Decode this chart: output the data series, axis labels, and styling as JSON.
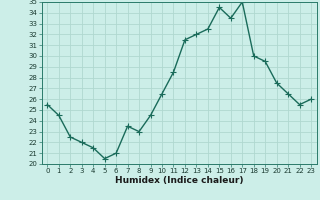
{
  "xlabel": "Humidex (Indice chaleur)",
  "ylabel": "",
  "x_values": [
    0,
    1,
    2,
    3,
    4,
    5,
    6,
    7,
    8,
    9,
    10,
    11,
    12,
    13,
    14,
    15,
    16,
    17,
    18,
    19,
    20,
    21,
    22,
    23
  ],
  "y_values": [
    25.5,
    24.5,
    22.5,
    22.0,
    21.5,
    20.5,
    21.0,
    23.5,
    23.0,
    24.5,
    26.5,
    28.5,
    31.5,
    32.0,
    32.5,
    34.5,
    33.5,
    35.0,
    30.0,
    29.5,
    27.5,
    26.5,
    25.5,
    26.0
  ],
  "line_color": "#1a6b5a",
  "marker_color": "#1a6b5a",
  "bg_color": "#cceee8",
  "grid_color": "#b0d8d0",
  "ylim": [
    20,
    35
  ],
  "xlim": [
    -0.5,
    23.5
  ],
  "yticks": [
    20,
    21,
    22,
    23,
    24,
    25,
    26,
    27,
    28,
    29,
    30,
    31,
    32,
    33,
    34,
    35
  ],
  "xticks": [
    0,
    1,
    2,
    3,
    4,
    5,
    6,
    7,
    8,
    9,
    10,
    11,
    12,
    13,
    14,
    15,
    16,
    17,
    18,
    19,
    20,
    21,
    22,
    23
  ],
  "tick_fontsize": 5.0,
  "xlabel_fontsize": 6.5,
  "xlabel_fontweight": "bold",
  "line_width": 1.0,
  "marker_size": 2.0
}
